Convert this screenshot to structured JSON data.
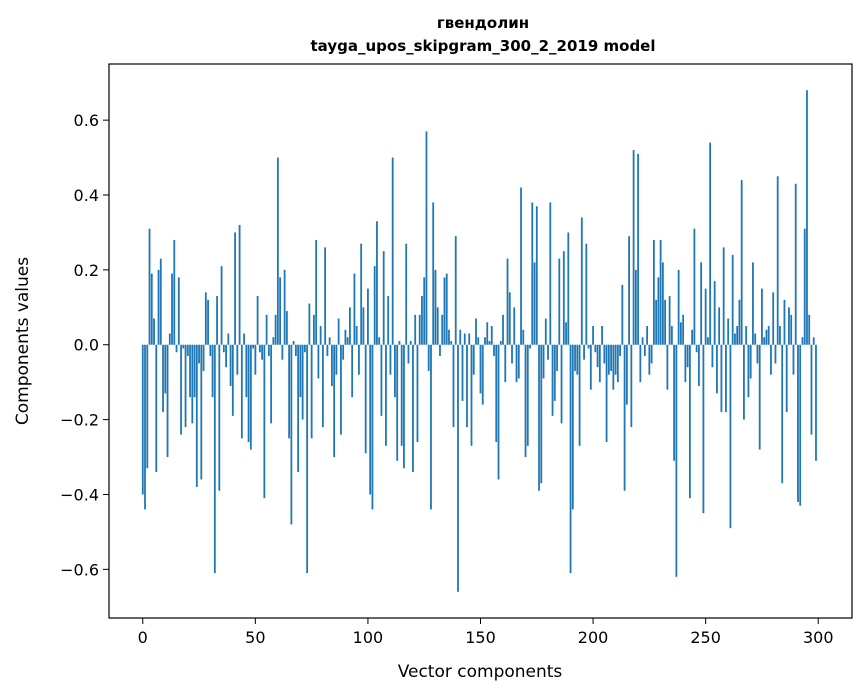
{
  "chart_data": {
    "type": "bar",
    "title": "гвендолин",
    "subtitle": "tayga_upos_skipgram_300_2_2019 model",
    "xlabel": "Vector components",
    "ylabel": "Components values",
    "xlim": [
      -15,
      315
    ],
    "ylim": [
      -0.73,
      0.75
    ],
    "xticks": [
      0,
      50,
      100,
      150,
      200,
      250,
      300
    ],
    "yticks": [
      -0.6,
      -0.4,
      -0.2,
      0.0,
      0.2,
      0.4,
      0.6
    ],
    "ytick_labels": [
      "−0.6",
      "−0.4",
      "−0.2",
      "0.0",
      "0.2",
      "0.4",
      "0.6"
    ],
    "grid": false,
    "bar_color": "#1f77b4",
    "values": [
      -0.4,
      -0.44,
      -0.33,
      0.31,
      0.19,
      0.07,
      -0.34,
      0.2,
      0.23,
      -0.18,
      -0.13,
      -0.3,
      0.03,
      0.19,
      0.28,
      -0.02,
      0.18,
      -0.24,
      -0.01,
      -0.22,
      -0.03,
      -0.14,
      -0.21,
      -0.14,
      -0.38,
      -0.05,
      -0.36,
      -0.07,
      0.14,
      0.12,
      -0.03,
      -0.14,
      -0.61,
      0.13,
      -0.39,
      0.21,
      -0.02,
      -0.06,
      0.03,
      -0.11,
      -0.19,
      0.3,
      -0.08,
      0.32,
      -0.25,
      0.03,
      -0.14,
      -0.26,
      -0.28,
      -0.01,
      -0.08,
      0.13,
      -0.02,
      -0.04,
      -0.41,
      0.08,
      -0.03,
      -0.21,
      0.02,
      0.08,
      0.5,
      0.18,
      -0.04,
      0.2,
      0.09,
      -0.25,
      -0.48,
      0.01,
      -0.03,
      -0.34,
      -0.14,
      -0.2,
      -0.02,
      -0.61,
      0.11,
      -0.25,
      0.08,
      0.28,
      -0.09,
      0.05,
      -0.22,
      0.26,
      -0.03,
      0.02,
      -0.11,
      -0.3,
      -0.08,
      0.07,
      -0.24,
      -0.04,
      0.04,
      0.02,
      0.1,
      -0.14,
      0.19,
      0.05,
      -0.08,
      0.27,
      0.1,
      -0.29,
      0.15,
      -0.4,
      -0.44,
      0.21,
      0.33,
      0.02,
      -0.19,
      0.25,
      -0.27,
      0.13,
      -0.08,
      0.5,
      -0.14,
      -0.31,
      0.01,
      -0.27,
      -0.33,
      0.27,
      -0.05,
      0.01,
      -0.34,
      0.08,
      -0.26,
      0.08,
      0.13,
      0.18,
      0.57,
      -0.07,
      -0.44,
      0.38,
      0.2,
      0.1,
      -0.03,
      0.08,
      0.18,
      0.19,
      0.04,
      0.01,
      -0.22,
      0.29,
      -0.66,
      0.04,
      -0.15,
      0.03,
      -0.22,
      0.03,
      -0.27,
      -0.08,
      0.07,
      0.02,
      -0.13,
      -0.16,
      0.02,
      0.06,
      0.01,
      0.05,
      -0.03,
      -0.26,
      -0.36,
      0.01,
      0.08,
      -0.1,
      0.23,
      0.14,
      -0.05,
      0.1,
      -0.1,
      -0.09,
      0.42,
      0.04,
      -0.3,
      -0.27,
      -0.01,
      0.38,
      0.22,
      0.37,
      -0.39,
      -0.37,
      -0.09,
      0.07,
      -0.04,
      0.38,
      -0.19,
      -0.15,
      -0.07,
      0.23,
      -0.21,
      0.25,
      0.06,
      0.3,
      -0.61,
      -0.44,
      -0.07,
      -0.08,
      -0.27,
      0.34,
      -0.04,
      0.27,
      -0.01,
      -0.12,
      0.05,
      -0.02,
      -0.06,
      -0.1,
      0.05,
      -0.05,
      -0.26,
      -0.08,
      -0.07,
      -0.12,
      -0.08,
      -0.1,
      -0.03,
      0.16,
      -0.39,
      -0.16,
      0.29,
      -0.22,
      0.52,
      0.2,
      0.51,
      -0.1,
      0.02,
      -0.03,
      0.05,
      -0.08,
      -0.05,
      0.28,
      0.12,
      0.18,
      0.28,
      0.22,
      0.12,
      -0.12,
      0.13,
      0.05,
      -0.31,
      -0.62,
      0.2,
      0.06,
      0.08,
      -0.1,
      -0.06,
      -0.41,
      0.04,
      0.31,
      -0.02,
      -0.11,
      0.22,
      -0.45,
      0.15,
      0.02,
      0.54,
      -0.06,
      0.17,
      -0.13,
      0.1,
      -0.18,
      0.26,
      -0.18,
      0.07,
      -0.49,
      0.24,
      0.03,
      0.05,
      0.12,
      0.44,
      -0.2,
      0.05,
      -0.14,
      -0.09,
      0.22,
      0.03,
      -0.05,
      -0.28,
      0.15,
      0.02,
      0.04,
      0.05,
      -0.08,
      0.14,
      -0.05,
      0.45,
      0.05,
      -0.37,
      0.12,
      -0.18,
      0.1,
      0.08,
      -0.08,
      0.43,
      -0.42,
      -0.43,
      0.02,
      0.31,
      0.68,
      0.08,
      -0.24,
      0.02,
      -0.31
    ]
  }
}
